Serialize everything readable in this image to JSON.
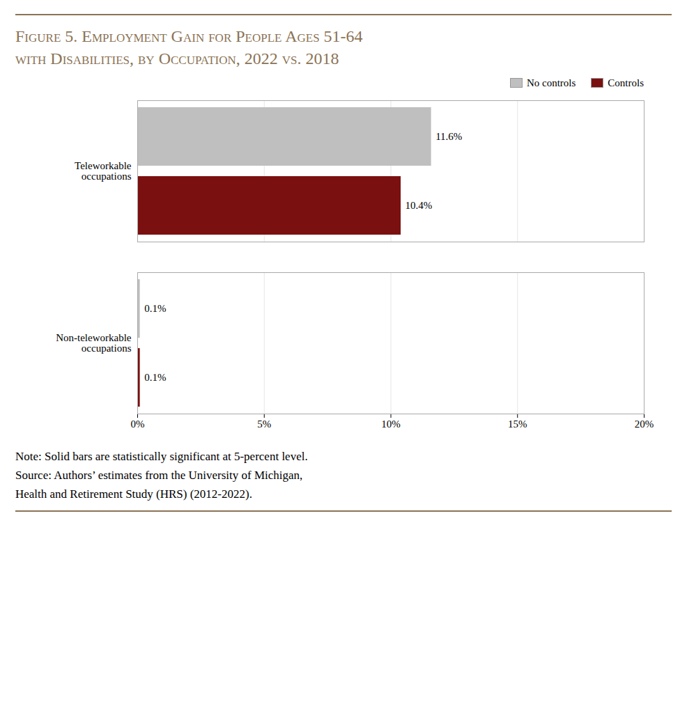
{
  "chart_data": {
    "type": "bar",
    "orientation": "horizontal",
    "title": "Figure 5. Employment Gain for People Ages 51-64\nwith Disabilities, by Occupation, 2022 vs. 2018",
    "categories": [
      "Teleworkable\noccupations",
      "Non-teleworkable\noccupations"
    ],
    "series": [
      {
        "name": "No controls",
        "color": "#c0bfbf",
        "values": [
          11.6,
          0.1
        ],
        "value_labels": [
          "11.6%",
          "0.1%"
        ]
      },
      {
        "name": "Controls",
        "color": "#7b1010",
        "values": [
          10.4,
          0.1
        ],
        "value_labels": [
          "10.4%",
          "0.1%"
        ]
      }
    ],
    "xlim": [
      0,
      20
    ],
    "xticks": [
      {
        "value": 0,
        "label": "0%"
      },
      {
        "value": 5,
        "label": "5%"
      },
      {
        "value": 10,
        "label": "10%"
      },
      {
        "value": 15,
        "label": "15%"
      },
      {
        "value": 20,
        "label": "20%"
      }
    ],
    "grid": true,
    "legend": "right",
    "data_labels": true,
    "annotations": [
      "Note: Solid bars are statistically significant at 5-percent level.",
      "Source: Authors’ estimates from the University of Michigan,",
      "Health and Retirement Study (HRS) (2012-2022)."
    ]
  }
}
